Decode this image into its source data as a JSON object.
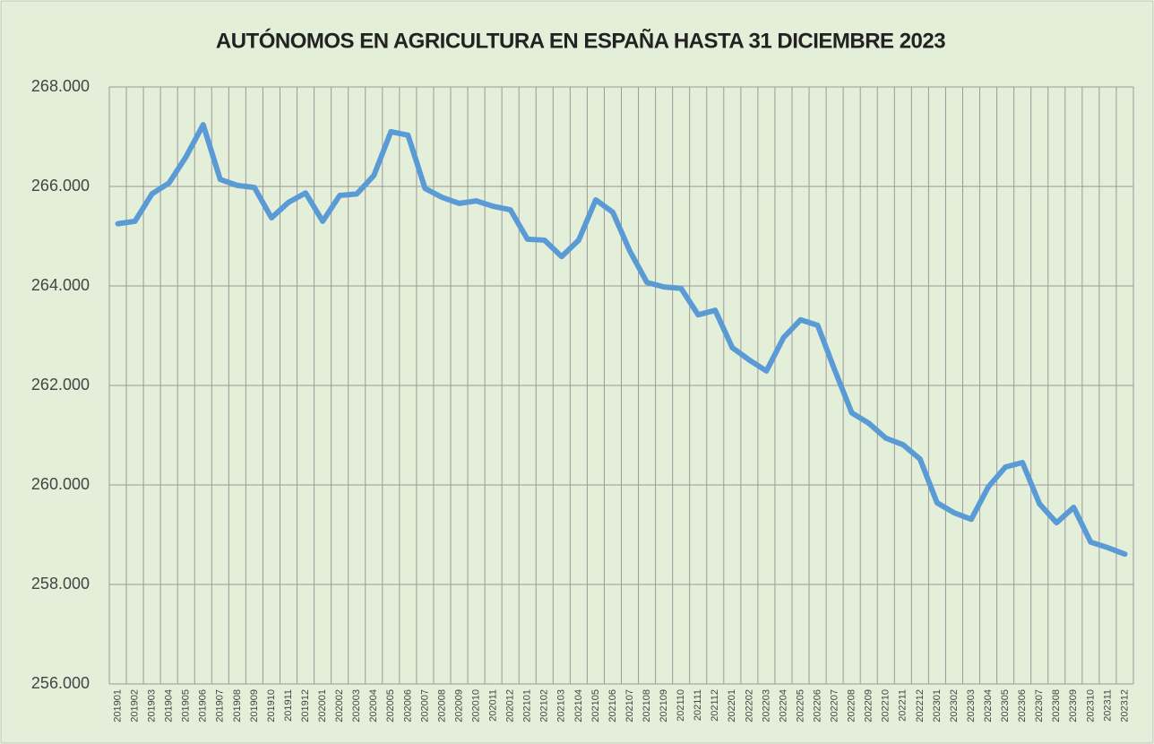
{
  "chart_data": {
    "type": "line",
    "title": "AUTÓNOMOS EN AGRICULTURA EN ESPAÑA HASTA 31 DICIEMBRE 2023",
    "categories": [
      "201901",
      "201902",
      "201903",
      "201904",
      "201905",
      "201906",
      "201907",
      "201908",
      "201909",
      "201910",
      "201911",
      "201912",
      "202001",
      "202002",
      "202003",
      "202004",
      "202005",
      "202006",
      "202007",
      "202008",
      "202009",
      "202010",
      "202011",
      "202012",
      "202101",
      "202102",
      "202103",
      "202104",
      "202105",
      "202106",
      "202107",
      "202108",
      "202109",
      "202110",
      "202111",
      "202112",
      "202201",
      "202202",
      "202203",
      "202204",
      "202205",
      "202206",
      "202207",
      "202208",
      "202209",
      "202210",
      "202211",
      "202212",
      "202301",
      "202302",
      "202303",
      "202304",
      "202305",
      "202306",
      "202307",
      "202308",
      "202309",
      "202310",
      "202311",
      "202312"
    ],
    "series": [
      {
        "color": "#5b9bd5",
        "values": [
          265250,
          265300,
          265850,
          266070,
          266600,
          267240,
          266140,
          266020,
          265980,
          265370,
          265680,
          265870,
          265300,
          265820,
          265850,
          266220,
          267100,
          267030,
          265960,
          265780,
          265660,
          265710,
          265600,
          265530,
          264940,
          264920,
          264590,
          264920,
          265730,
          265480,
          264700,
          264070,
          263980,
          263950,
          263420,
          263510,
          262760,
          262510,
          262290,
          262960,
          263320,
          263210,
          262310,
          261450,
          261240,
          260940,
          260810,
          260520,
          259640,
          259440,
          259310,
          259960,
          260360,
          260450,
          259620,
          259240,
          259550,
          258850,
          258740,
          258610
        ]
      }
    ],
    "ylim": [
      256000,
      268000
    ],
    "yticks": [
      {
        "value": 256000,
        "label": "256.000"
      },
      {
        "value": 258000,
        "label": "258.000"
      },
      {
        "value": 260000,
        "label": "260.000"
      },
      {
        "value": 262000,
        "label": "262.000"
      },
      {
        "value": 264000,
        "label": "264.000"
      },
      {
        "value": 266000,
        "label": "266.000"
      },
      {
        "value": 268000,
        "label": "268.000"
      }
    ],
    "grid": true
  }
}
